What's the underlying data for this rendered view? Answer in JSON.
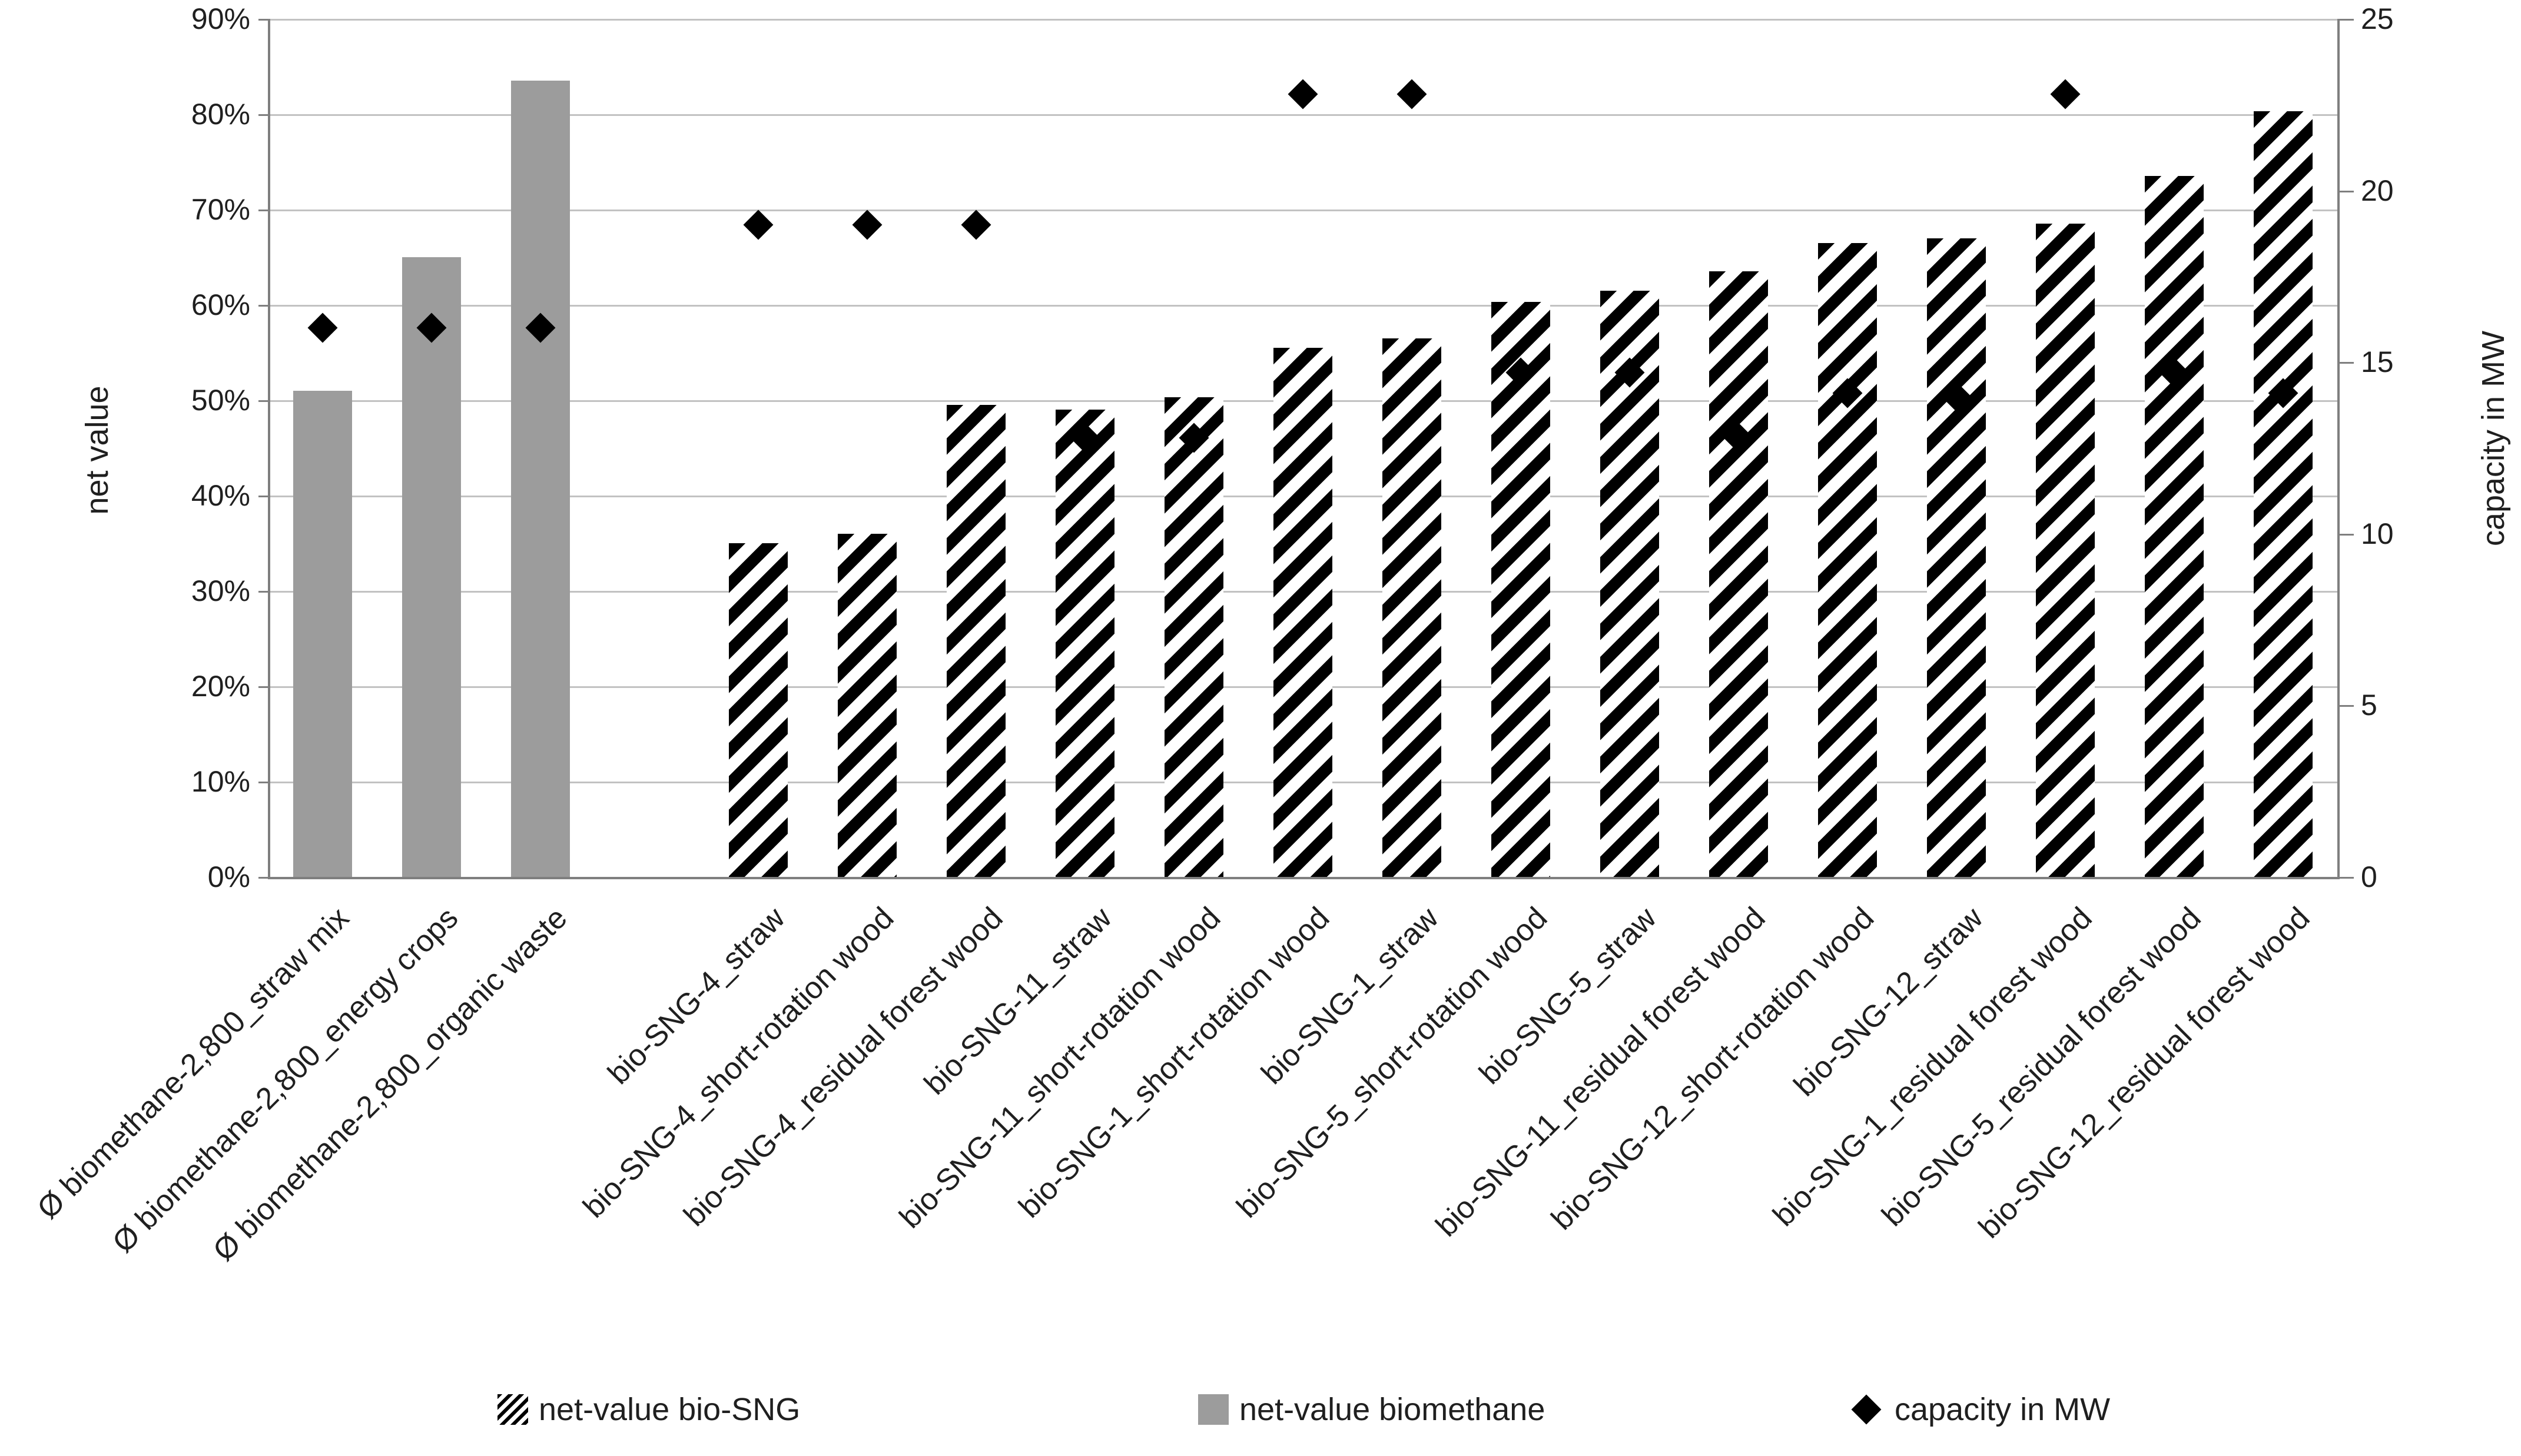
{
  "figure": {
    "left_axis_title": "net value",
    "right_axis_title": "capacity in MW",
    "legend": {
      "bio_sng": "net-value bio-SNG",
      "biomethane": "net-value biomethane",
      "capacity": "capacity in MW"
    }
  },
  "colors": {
    "biomethane_bar": "#9c9c9c",
    "hatch": "#000000",
    "marker": "#000000",
    "gridline": "#c2c2c2",
    "axis_line": "#7f7f7f",
    "text": "#1f1f1f"
  },
  "chart_data": {
    "type": "bar",
    "subtype": "combo: two bar series (left % axis) + diamond scatter series (right MW axis)",
    "title": "",
    "categories": [
      "Ø biomethane-2,800_straw mix",
      "Ø biomethane-2,800_energy crops",
      "Ø biomethane-2,800_organic waste",
      "bio-SNG-4_straw",
      "bio-SNG-4_short-rotation wood",
      "bio-SNG-4_residual forest wood",
      "bio-SNG-11_straw",
      "bio-SNG-11_short-rotation wood",
      "bio-SNG-1_short-rotation wood",
      "bio-SNG-1_straw",
      "bio-SNG-5_short-rotation wood",
      "bio-SNG-5_straw",
      "bio-SNG-11_residual forest wood",
      "bio-SNG-12_short-rotation wood",
      "bio-SNG-12_straw",
      "bio-SNG-1_residual forest wood",
      "bio-SNG-5_residual forest wood",
      "bio-SNG-12_residual forest wood"
    ],
    "series": [
      {
        "name": "net-value biomethane",
        "type": "bar",
        "pattern": "solid-gray",
        "axis": "left",
        "unit": "%",
        "values": [
          51,
          65,
          83.5,
          null,
          null,
          null,
          null,
          null,
          null,
          null,
          null,
          null,
          null,
          null,
          null,
          null,
          null,
          null
        ]
      },
      {
        "name": "net-value bio-SNG",
        "type": "bar",
        "pattern": "diagonal-hatch",
        "axis": "left",
        "unit": "%",
        "values": [
          null,
          null,
          null,
          35,
          36,
          49.5,
          49,
          50.3,
          55.5,
          56.5,
          60.3,
          61.5,
          63.5,
          66.5,
          67,
          68.5,
          73.5,
          80.3
        ]
      },
      {
        "name": "capacity in MW",
        "type": "scatter",
        "marker": "diamond",
        "axis": "right",
        "unit": "MW",
        "values": [
          16,
          16,
          16,
          19,
          19,
          19,
          12.8,
          12.8,
          22.8,
          22.8,
          14.7,
          14.7,
          12.8,
          14.1,
          14,
          22.8,
          14.7,
          14.1
        ]
      }
    ],
    "left_axis": {
      "title": "net value",
      "min": 0,
      "max": 90,
      "step": 10,
      "format": "percent",
      "tick_labels": [
        "0%",
        "10%",
        "20%",
        "30%",
        "40%",
        "50%",
        "60%",
        "70%",
        "80%",
        "90%"
      ]
    },
    "right_axis": {
      "title": "capacity in MW",
      "min": 0,
      "max": 25,
      "step": 5,
      "tick_labels": [
        "0",
        "5",
        "10",
        "15",
        "20",
        "25"
      ]
    },
    "layout": {
      "grid": "horizontal",
      "legend_position": "bottom",
      "gap_after_category_index": 2,
      "x_labels_rotation_deg": 45
    }
  }
}
